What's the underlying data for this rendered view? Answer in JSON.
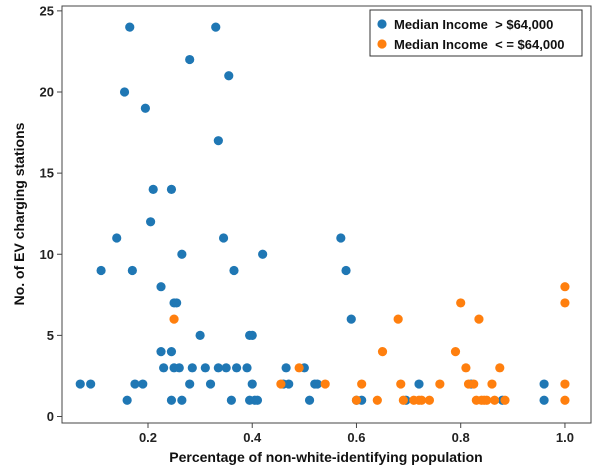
{
  "chart_data": {
    "type": "scatter",
    "xlabel": "Percentage of non-white-identifying population",
    "ylabel": "No. of EV charging stations",
    "xlim": [
      0.035,
      1.05
    ],
    "ylim": [
      -0.4,
      25.3
    ],
    "xticks": [
      0.2,
      0.4,
      0.6,
      0.8,
      1.0
    ],
    "xtick_labels": [
      "0.2",
      "0.4",
      "0.6",
      "0.8",
      "1.0"
    ],
    "yticks": [
      0,
      5,
      10,
      15,
      20,
      25
    ],
    "ytick_labels": [
      "0",
      "5",
      "10",
      "15",
      "20",
      "25"
    ],
    "grid": false,
    "legend_position": "top-right",
    "series": [
      {
        "name": "Median Income  > $64,000",
        "color": "#1f77b4",
        "points": [
          [
            0.07,
            2
          ],
          [
            0.09,
            2
          ],
          [
            0.11,
            9
          ],
          [
            0.14,
            11
          ],
          [
            0.155,
            20
          ],
          [
            0.16,
            1
          ],
          [
            0.165,
            24
          ],
          [
            0.17,
            9
          ],
          [
            0.175,
            2
          ],
          [
            0.19,
            2
          ],
          [
            0.195,
            19
          ],
          [
            0.205,
            12
          ],
          [
            0.21,
            14
          ],
          [
            0.225,
            4
          ],
          [
            0.225,
            8
          ],
          [
            0.23,
            3
          ],
          [
            0.245,
            14
          ],
          [
            0.245,
            4
          ],
          [
            0.245,
            1
          ],
          [
            0.25,
            7
          ],
          [
            0.25,
            3
          ],
          [
            0.255,
            7
          ],
          [
            0.26,
            3
          ],
          [
            0.265,
            10
          ],
          [
            0.265,
            1
          ],
          [
            0.28,
            2
          ],
          [
            0.28,
            22
          ],
          [
            0.285,
            3
          ],
          [
            0.3,
            5
          ],
          [
            0.31,
            3
          ],
          [
            0.32,
            2
          ],
          [
            0.33,
            24
          ],
          [
            0.335,
            17
          ],
          [
            0.335,
            3
          ],
          [
            0.345,
            11
          ],
          [
            0.35,
            3
          ],
          [
            0.355,
            21
          ],
          [
            0.36,
            1
          ],
          [
            0.365,
            9
          ],
          [
            0.37,
            3
          ],
          [
            0.39,
            3
          ],
          [
            0.395,
            5
          ],
          [
            0.395,
            1
          ],
          [
            0.4,
            2
          ],
          [
            0.4,
            5
          ],
          [
            0.405,
            1
          ],
          [
            0.41,
            1
          ],
          [
            0.42,
            10
          ],
          [
            0.46,
            2
          ],
          [
            0.465,
            3
          ],
          [
            0.47,
            2
          ],
          [
            0.5,
            3
          ],
          [
            0.51,
            1
          ],
          [
            0.52,
            2
          ],
          [
            0.525,
            2
          ],
          [
            0.57,
            11
          ],
          [
            0.58,
            9
          ],
          [
            0.59,
            6
          ],
          [
            0.6,
            1
          ],
          [
            0.61,
            1
          ],
          [
            0.695,
            1
          ],
          [
            0.72,
            2
          ],
          [
            0.82,
            2
          ],
          [
            0.88,
            1
          ],
          [
            0.96,
            2
          ],
          [
            0.96,
            1
          ]
        ]
      },
      {
        "name": "Median Income  < = $64,000",
        "color": "#ff7f0e",
        "points": [
          [
            0.25,
            6
          ],
          [
            0.455,
            2
          ],
          [
            0.49,
            3
          ],
          [
            0.54,
            2
          ],
          [
            0.6,
            1
          ],
          [
            0.61,
            2
          ],
          [
            0.64,
            1
          ],
          [
            0.65,
            4
          ],
          [
            0.68,
            6
          ],
          [
            0.685,
            2
          ],
          [
            0.69,
            1
          ],
          [
            0.71,
            1
          ],
          [
            0.72,
            1
          ],
          [
            0.725,
            1
          ],
          [
            0.74,
            1
          ],
          [
            0.76,
            2
          ],
          [
            0.79,
            4
          ],
          [
            0.8,
            7
          ],
          [
            0.81,
            3
          ],
          [
            0.815,
            2
          ],
          [
            0.825,
            2
          ],
          [
            0.83,
            1
          ],
          [
            0.835,
            6
          ],
          [
            0.84,
            1
          ],
          [
            0.845,
            1
          ],
          [
            0.85,
            1
          ],
          [
            0.86,
            2
          ],
          [
            0.865,
            1
          ],
          [
            0.875,
            3
          ],
          [
            0.885,
            1
          ],
          [
            1.0,
            8
          ],
          [
            1.0,
            7
          ],
          [
            1.0,
            2
          ],
          [
            1.0,
            1
          ]
        ]
      }
    ]
  }
}
